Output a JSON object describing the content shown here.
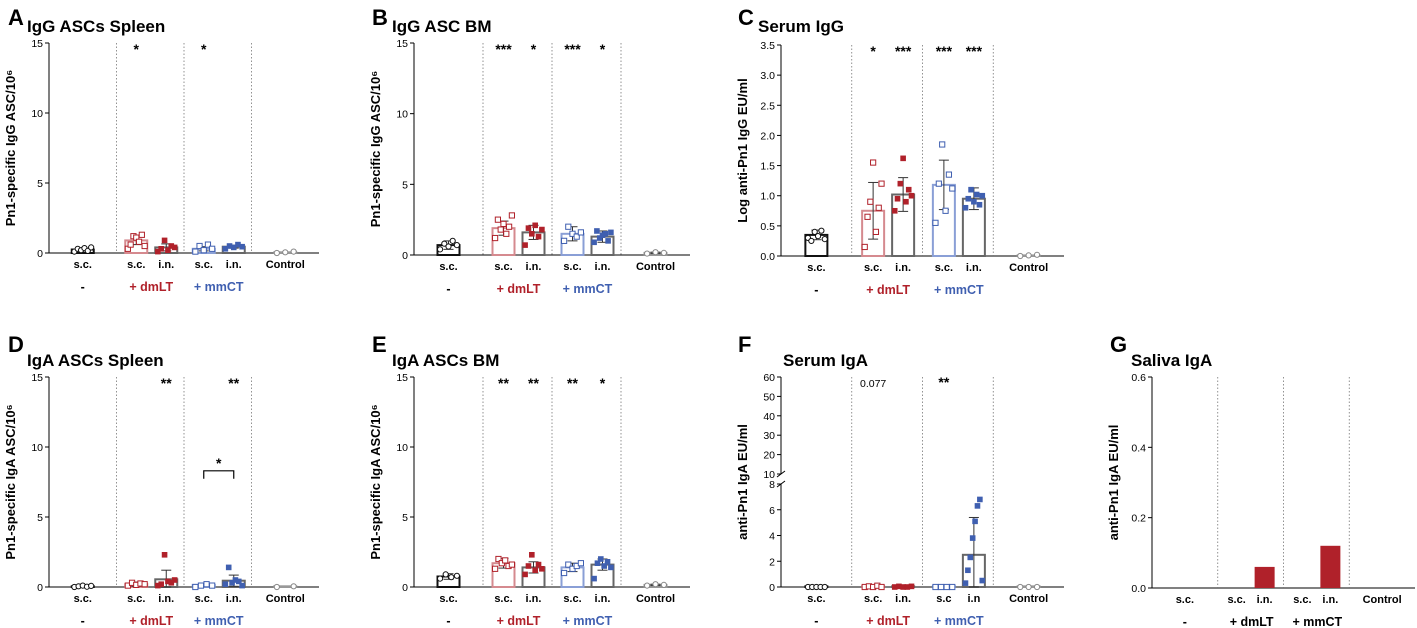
{
  "colors": {
    "black": "#111111",
    "red": "#b0212a",
    "blue": "#3f5fb0",
    "lightred": "#d58a8f",
    "lightblue": "#8a9fd6",
    "gray": "#8a8a8a"
  },
  "chart_data": [
    {
      "panel": "A",
      "type": "bar",
      "title": "IgG ASCs Spleen",
      "ylabel": "Pn1-specific IgG ASC/10⁶",
      "ylim": [
        0,
        15
      ],
      "yticks": [
        "0",
        "5",
        "10",
        "15"
      ],
      "categories": [
        "s.c.",
        "s.c.",
        "i.n.",
        "s.c.",
        "i.n.",
        "Control"
      ],
      "groups": [
        "-",
        "+ dmLT",
        "+ mmCT"
      ],
      "values": [
        0.25,
        0.9,
        0.4,
        0.3,
        0.45,
        0.05
      ],
      "errors": [
        0.1,
        0.3,
        0.25,
        0.15,
        0.1,
        0.0
      ],
      "points": [
        [
          0.1,
          0.3,
          0.2,
          0.35,
          0.15,
          0.4
        ],
        [
          0.3,
          0.6,
          1.2,
          1.1,
          0.8,
          1.3,
          0.5
        ],
        [
          0.1,
          0.3,
          0.9,
          0.2,
          0.5,
          0.4
        ],
        [
          0.1,
          0.5,
          0.2,
          0.6,
          0.3
        ],
        [
          0.3,
          0.5,
          0.4,
          0.6,
          0.45
        ],
        [
          0.0,
          0.05,
          0.1
        ]
      ],
      "significance": [
        "",
        "*",
        "",
        "*",
        "",
        ""
      ]
    },
    {
      "panel": "B",
      "type": "bar",
      "title": "IgG ASC BM",
      "ylabel": "Pn1-specific IgG ASC/10⁶",
      "ylim": [
        0,
        15
      ],
      "yticks": [
        "0",
        "5",
        "10",
        "15"
      ],
      "categories": [
        "s.c.",
        "s.c.",
        "i.n.",
        "s.c.",
        "i.n.",
        "Control"
      ],
      "groups": [
        "-",
        "+ dmLT",
        "+ mmCT"
      ],
      "values": [
        0.7,
        1.9,
        1.6,
        1.5,
        1.3,
        0.15
      ],
      "errors": [
        0.3,
        0.5,
        0.5,
        0.5,
        0.4,
        0.05
      ],
      "points": [
        [
          0.4,
          0.8,
          0.6,
          1.0,
          0.7
        ],
        [
          1.2,
          2.5,
          1.8,
          2.2,
          1.5,
          2.0,
          2.8
        ],
        [
          0.7,
          1.9,
          1.5,
          2.1,
          1.3,
          1.8
        ],
        [
          1.0,
          2.0,
          1.5,
          1.3,
          1.6
        ],
        [
          0.9,
          1.7,
          1.2,
          1.4,
          1.5,
          1.0,
          1.6
        ],
        [
          0.1,
          0.2,
          0.15
        ]
      ],
      "significance": [
        "",
        "***",
        "*",
        "***",
        "*",
        ""
      ]
    },
    {
      "panel": "C",
      "type": "bar",
      "title": "Serum IgG",
      "ylabel": "Log anti-Pn1 IgG EU/ml",
      "ylim": [
        0,
        3.5
      ],
      "yticks": [
        "0.0",
        "0.5",
        "1.0",
        "1.5",
        "2.0",
        "2.5",
        "3.0",
        "3.5"
      ],
      "categories": [
        "s.c.",
        "s.c.",
        "i.n.",
        "s.c.",
        "i.n.",
        "Control"
      ],
      "groups": [
        "-",
        "+ dmLT",
        "+ mmCT"
      ],
      "values": [
        0.35,
        0.75,
        1.02,
        1.18,
        0.95,
        0.01
      ],
      "errors": [
        0.08,
        0.47,
        0.28,
        0.41,
        0.18,
        0.0
      ],
      "points": [
        [
          0.3,
          0.25,
          0.4,
          0.33,
          0.42,
          0.28
        ],
        [
          0.15,
          0.65,
          0.9,
          1.55,
          0.4,
          0.8,
          1.2
        ],
        [
          0.75,
          0.95,
          1.2,
          1.62,
          0.9,
          1.1,
          1.0
        ],
        [
          0.55,
          1.2,
          1.85,
          0.75,
          1.35,
          1.12
        ],
        [
          0.8,
          0.95,
          1.1,
          0.9,
          1.02,
          0.85,
          1.0
        ],
        [
          0.0,
          0.01,
          0.02
        ]
      ],
      "significance": [
        "",
        "*",
        "***",
        "***",
        "***",
        ""
      ]
    },
    {
      "panel": "D",
      "type": "bar",
      "title": "IgA ASCs Spleen",
      "ylabel": "Pn1-specific IgA ASC/10⁶",
      "ylim": [
        0,
        15
      ],
      "yticks": [
        "0",
        "5",
        "10",
        "15"
      ],
      "categories": [
        "s.c.",
        "s.c.",
        "i.n.",
        "s.c.",
        "i.n.",
        "Control"
      ],
      "groups": [
        "-",
        "+ dmLT",
        "+ mmCT"
      ],
      "values": [
        0.05,
        0.2,
        0.55,
        0.15,
        0.45,
        0.05
      ],
      "errors": [
        0.03,
        0.15,
        0.65,
        0.1,
        0.4,
        0.0
      ],
      "points": [
        [
          0.0,
          0.05,
          0.1,
          0.02,
          0.08
        ],
        [
          0.1,
          0.3,
          0.15,
          0.25,
          0.2
        ],
        [
          0.1,
          0.2,
          2.3,
          0.4,
          0.3,
          0.5
        ],
        [
          0.0,
          0.1,
          0.2,
          0.1
        ],
        [
          0.2,
          1.4,
          0.3,
          0.5,
          0.4,
          0.1
        ],
        [
          0.0,
          0.05
        ]
      ],
      "significance": [
        "",
        "",
        "**",
        "",
        "**",
        ""
      ],
      "bracket": {
        "label": "*",
        "from": 3,
        "to": 4,
        "value": 8.3
      }
    },
    {
      "panel": "E",
      "type": "bar",
      "title": "IgA ASCs BM",
      "ylabel": "Pn1-specific IgA ASC/10⁶",
      "ylim": [
        0,
        15
      ],
      "yticks": [
        "0",
        "5",
        "10",
        "15"
      ],
      "categories": [
        "s.c.",
        "s.c.",
        "i.n.",
        "s.c.",
        "i.n.",
        "Control"
      ],
      "groups": [
        "-",
        "+ dmLT",
        "+ mmCT"
      ],
      "values": [
        0.75,
        1.7,
        1.4,
        1.4,
        1.6,
        0.15
      ],
      "errors": [
        0.2,
        0.35,
        0.4,
        0.3,
        0.4,
        0.05
      ],
      "points": [
        [
          0.6,
          0.9,
          0.7,
          0.8
        ],
        [
          1.3,
          2.0,
          1.7,
          1.9,
          1.5,
          1.6
        ],
        [
          0.9,
          1.5,
          2.3,
          1.2,
          1.6,
          1.3
        ],
        [
          1.0,
          1.6,
          1.3,
          1.5,
          1.7
        ],
        [
          0.6,
          1.7,
          2.0,
          1.5,
          1.8,
          1.4
        ],
        [
          0.1,
          0.2,
          0.15
        ]
      ],
      "significance": [
        "",
        "**",
        "**",
        "**",
        "*",
        ""
      ]
    },
    {
      "panel": "F",
      "type": "bar",
      "title": "Serum IgA",
      "ylabel": "anti-Pn1 IgA EU/ml",
      "broken_axis": true,
      "lower_ylim": [
        0,
        8
      ],
      "upper_ylim": [
        10,
        60
      ],
      "yticks_lower": [
        "0",
        "2",
        "4",
        "6",
        "8"
      ],
      "yticks_upper": [
        "10",
        "20",
        "30",
        "40",
        "50",
        "60"
      ],
      "categories": [
        "s.c.",
        "s.c.",
        "i.n.",
        "s.c",
        "i.n",
        "Control"
      ],
      "groups": [
        "-",
        "+ dmLT",
        "+ mmCT"
      ],
      "values": [
        0.05,
        0.05,
        0.05,
        0.05,
        2.5,
        0.05
      ],
      "errors": [
        0.0,
        0.0,
        0.0,
        0.0,
        2.9,
        0.0
      ],
      "points": [
        [
          0,
          0,
          0,
          0,
          0
        ],
        [
          0,
          0.05,
          0,
          0.1,
          0
        ],
        [
          0,
          0.05,
          0,
          0,
          0.05
        ],
        [
          0,
          0,
          0,
          0
        ],
        [
          0.3,
          1.3,
          2.3,
          3.8,
          5.1,
          6.3,
          6.8,
          0.5
        ],
        [
          0,
          0,
          0
        ]
      ],
      "significance": [
        "",
        "0.077",
        "",
        "**",
        "",
        ""
      ]
    },
    {
      "panel": "G",
      "type": "bar",
      "title": "Saliva IgA",
      "ylabel": "anti-Pn1 IgA EU/ml",
      "ylim": [
        0,
        0.6
      ],
      "yticks": [
        "0.0",
        "0.2",
        "0.4",
        "0.6"
      ],
      "categories": [
        "s.c.",
        "s.c.",
        "i.n.",
        "s.c.",
        "i.n.",
        "Control"
      ],
      "groups": [
        "-",
        "+ dmLT",
        "+ mmCT"
      ],
      "values": [
        0,
        0,
        0.06,
        0,
        0.12,
        0
      ],
      "errors": [
        0,
        0,
        0,
        0,
        0,
        0
      ],
      "points": [
        [],
        [],
        [],
        [],
        [],
        []
      ],
      "significance": [
        "",
        "",
        "",
        "",
        "",
        ""
      ]
    }
  ]
}
